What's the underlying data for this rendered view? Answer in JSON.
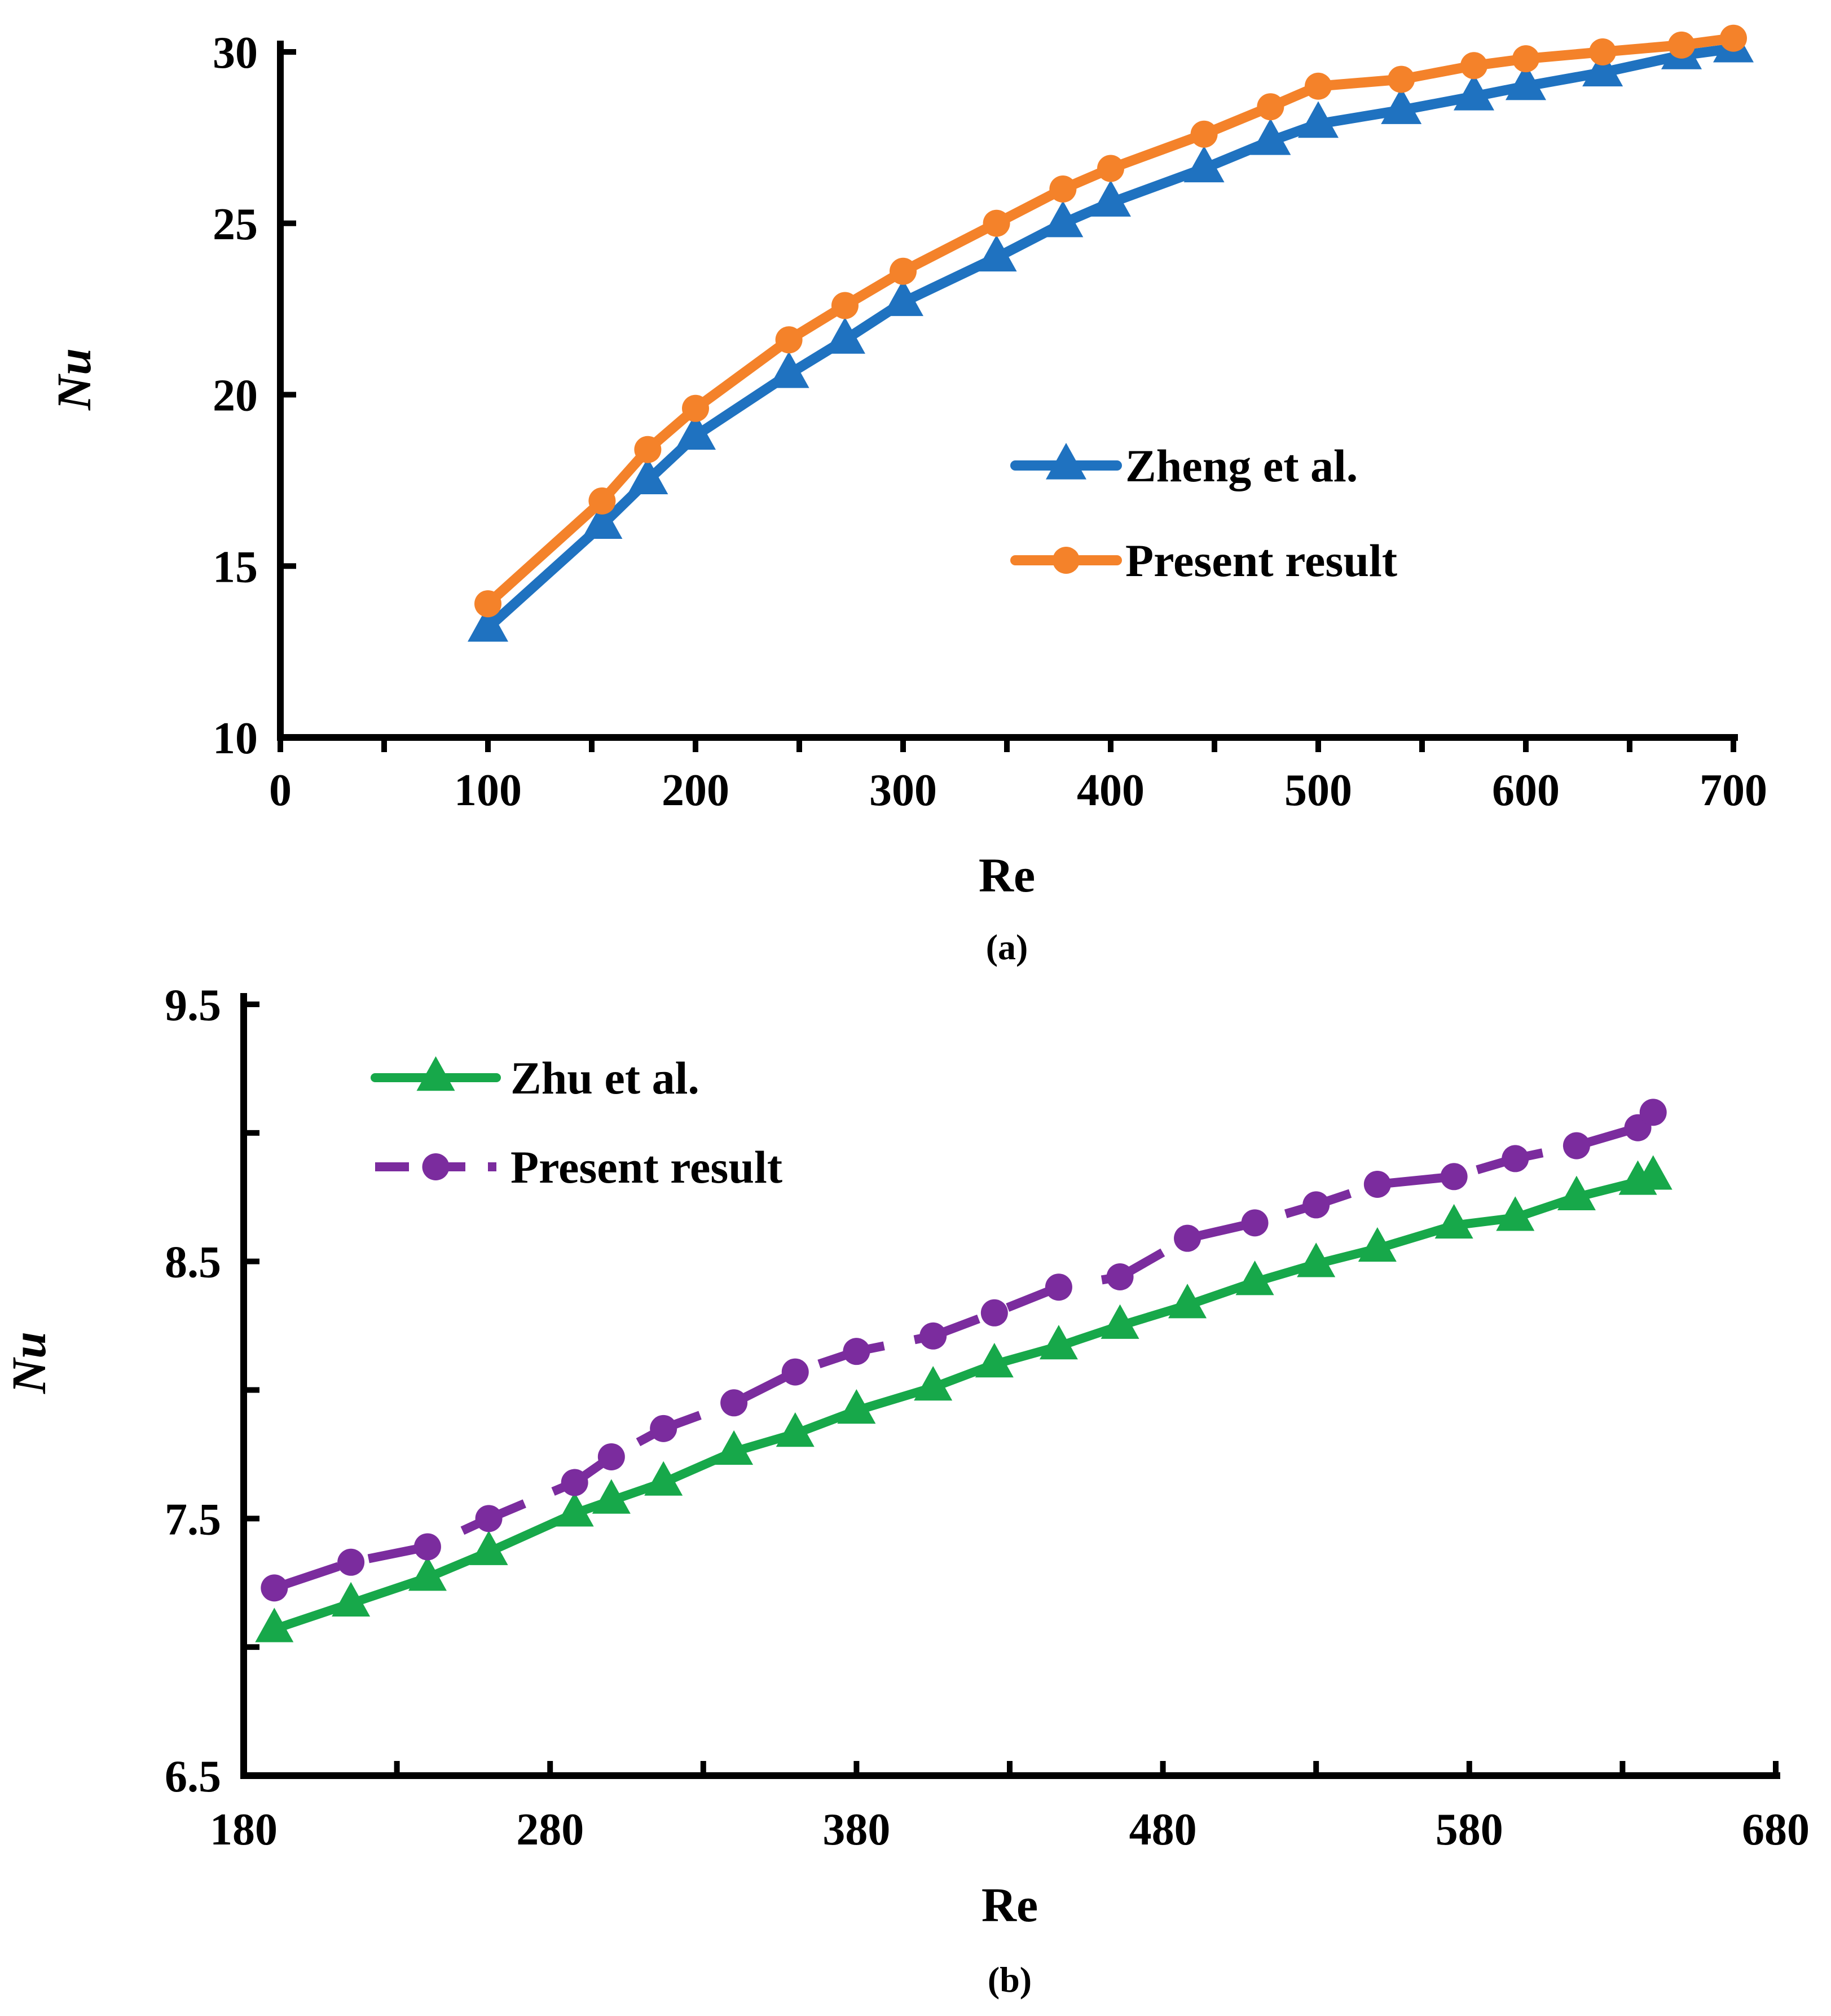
{
  "chart_data": [
    {
      "type": "line",
      "panel": "(a)",
      "caption": "(a)",
      "xlabel": "Re",
      "ylabel": "Nu",
      "xlim": [
        0,
        700
      ],
      "ylim": [
        10,
        30
      ],
      "xticks": [
        0,
        100,
        200,
        300,
        400,
        500,
        600,
        700
      ],
      "xtick_labels": [
        "0",
        "100",
        "200",
        "300",
        "400",
        "500",
        "600",
        "700"
      ],
      "yticks": [
        10,
        15,
        20,
        25,
        30
      ],
      "ytick_labels": [
        "10",
        "15",
        "20",
        "25",
        "30"
      ],
      "x_minor_step": 50,
      "legend_position": "center-right",
      "series": [
        {
          "name": "Zheng et al.",
          "color": "#1f72c0",
          "marker": "triangle",
          "line": "solid",
          "x": [
            100,
            155,
            177,
            200,
            245,
            272,
            300,
            345,
            377,
            400,
            445,
            477,
            500,
            540,
            575,
            600,
            637,
            675,
            700
          ],
          "y": [
            13.2,
            16.2,
            17.5,
            18.8,
            20.6,
            21.6,
            22.7,
            24.0,
            25.0,
            25.6,
            26.6,
            27.4,
            27.9,
            28.3,
            28.7,
            29.0,
            29.4,
            29.9,
            30.1
          ]
        },
        {
          "name": "Present result",
          "color": "#f4822a",
          "marker": "circle",
          "line": "solid",
          "x": [
            100,
            155,
            177,
            200,
            245,
            272,
            300,
            345,
            377,
            400,
            445,
            477,
            500,
            540,
            575,
            600,
            637,
            675,
            700
          ],
          "y": [
            13.9,
            16.9,
            18.4,
            19.6,
            21.6,
            22.6,
            23.6,
            25.0,
            26.0,
            26.6,
            27.6,
            28.4,
            29.0,
            29.2,
            29.6,
            29.8,
            30.0,
            30.2,
            30.4
          ]
        }
      ]
    },
    {
      "type": "line",
      "panel": "(b)",
      "caption": "(b)",
      "xlabel": "Re",
      "ylabel": "Nu",
      "xlim": [
        180,
        680
      ],
      "ylim": [
        6.5,
        9.5
      ],
      "xticks": [
        180,
        280,
        380,
        480,
        580,
        680
      ],
      "xtick_labels": [
        "180",
        "280",
        "380",
        "480",
        "580",
        "680"
      ],
      "yticks": [
        6.5,
        7.5,
        8.5,
        9.5
      ],
      "ytick_labels": [
        "6.5",
        "7.5",
        "8.5",
        "9.5"
      ],
      "x_minor_step": 50,
      "y_minor_step": 0.5,
      "legend_position": "top-left",
      "series": [
        {
          "name": "Zhu et al.",
          "color": "#17a84a",
          "marker": "triangle",
          "line": "solid",
          "x": [
            190,
            215,
            240,
            260,
            288,
            300,
            317,
            340,
            360,
            380,
            405,
            425,
            446,
            466,
            488,
            510,
            530,
            550,
            575,
            595,
            615,
            635,
            640
          ],
          "y": [
            7.07,
            7.17,
            7.27,
            7.37,
            7.52,
            7.57,
            7.64,
            7.76,
            7.83,
            7.92,
            8.01,
            8.1,
            8.17,
            8.25,
            8.33,
            8.42,
            8.49,
            8.55,
            8.64,
            8.67,
            8.75,
            8.81,
            8.83
          ]
        },
        {
          "name": "Present result",
          "color": "#7b2c9e",
          "marker": "circle",
          "line": "dashed",
          "x": [
            190,
            215,
            240,
            260,
            288,
            300,
            317,
            340,
            360,
            380,
            405,
            425,
            446,
            466,
            488,
            510,
            530,
            550,
            575,
            595,
            615,
            635,
            640
          ],
          "y": [
            7.23,
            7.33,
            7.39,
            7.5,
            7.64,
            7.74,
            7.85,
            7.95,
            8.07,
            8.15,
            8.21,
            8.3,
            8.4,
            8.44,
            8.59,
            8.65,
            8.72,
            8.8,
            8.83,
            8.9,
            8.95,
            9.02,
            9.08
          ]
        }
      ]
    }
  ]
}
